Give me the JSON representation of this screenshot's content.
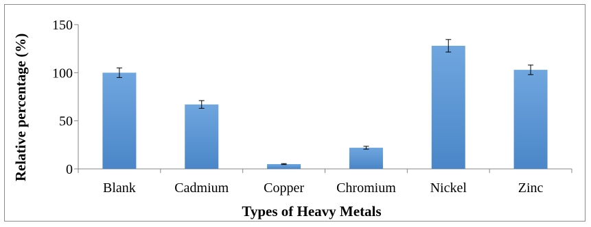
{
  "chart_data": {
    "type": "bar",
    "categories": [
      "Blank",
      "Cadmium",
      "Copper",
      "Chromium",
      "Nickel",
      "Zinc"
    ],
    "values": [
      100,
      67,
      5,
      22,
      128,
      103
    ],
    "error": [
      5,
      4,
      0.5,
      1.5,
      6.5,
      5
    ],
    "title": "",
    "xlabel": "Types of Heavy Metals",
    "ylabel": "Relative percentage (%)",
    "ylim": [
      0,
      150
    ],
    "yticks": [
      0,
      50,
      100,
      150
    ],
    "ytick_labels": [
      "0",
      "50",
      "100",
      "150"
    ],
    "grid": false,
    "legend": "none",
    "colors": {
      "bar_top": "#6fa6df",
      "bar_bottom": "#4a86c8",
      "axis": "#868686",
      "error_bar": "#000000"
    }
  }
}
